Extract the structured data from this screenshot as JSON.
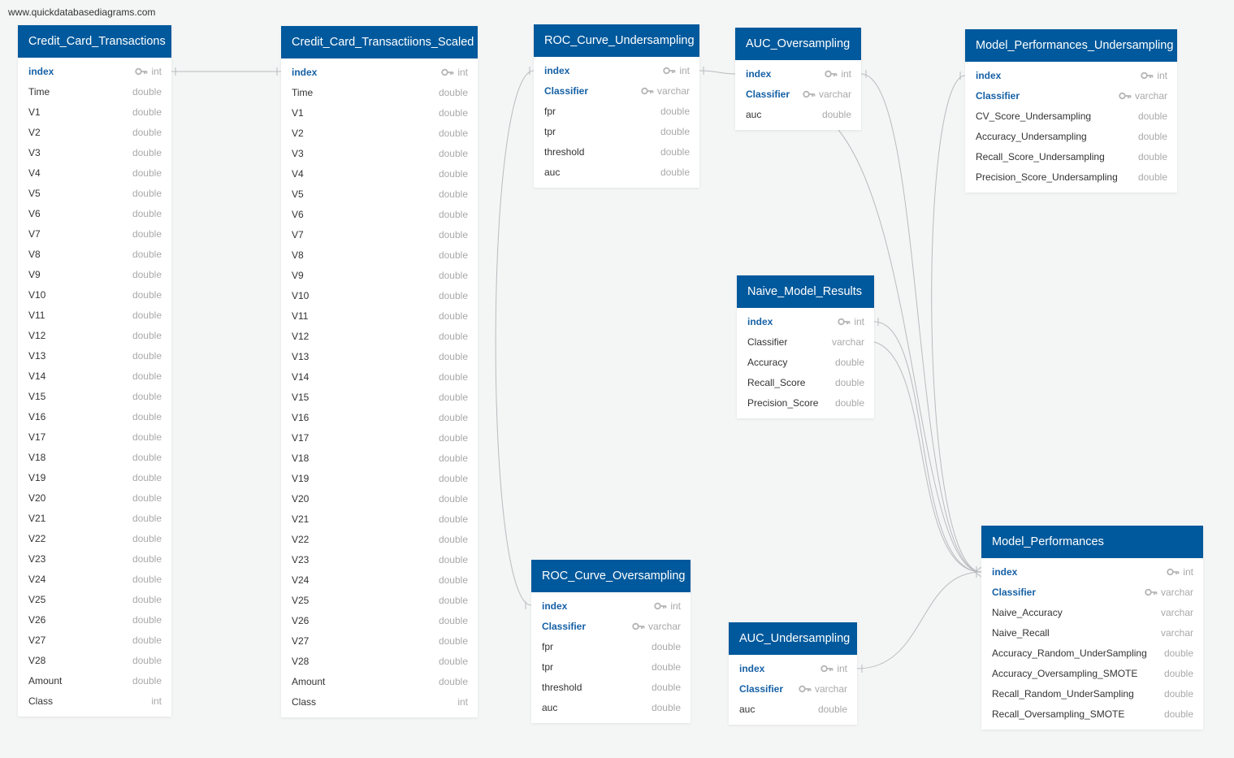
{
  "watermark": "www.quickdatabasediagrams.com",
  "colors": {
    "header": "#00599c",
    "key_text": "#1560a5",
    "type_text": "#a9a9a9",
    "line": "#b8bcbf",
    "background": "#f4f5f5"
  },
  "tables": [
    {
      "id": "credit_card_transactions",
      "name": "Credit_Card_Transactions",
      "fields": [
        {
          "name": "index",
          "type": "int",
          "pk": true
        },
        {
          "name": "Time",
          "type": "double"
        },
        {
          "name": "V1",
          "type": "double"
        },
        {
          "name": "V2",
          "type": "double"
        },
        {
          "name": "V3",
          "type": "double"
        },
        {
          "name": "V4",
          "type": "double"
        },
        {
          "name": "V5",
          "type": "double"
        },
        {
          "name": "V6",
          "type": "double"
        },
        {
          "name": "V7",
          "type": "double"
        },
        {
          "name": "V8",
          "type": "double"
        },
        {
          "name": "V9",
          "type": "double"
        },
        {
          "name": "V10",
          "type": "double"
        },
        {
          "name": "V11",
          "type": "double"
        },
        {
          "name": "V12",
          "type": "double"
        },
        {
          "name": "V13",
          "type": "double"
        },
        {
          "name": "V14",
          "type": "double"
        },
        {
          "name": "V15",
          "type": "double"
        },
        {
          "name": "V16",
          "type": "double"
        },
        {
          "name": "V17",
          "type": "double"
        },
        {
          "name": "V18",
          "type": "double"
        },
        {
          "name": "V19",
          "type": "double"
        },
        {
          "name": "V20",
          "type": "double"
        },
        {
          "name": "V21",
          "type": "double"
        },
        {
          "name": "V22",
          "type": "double"
        },
        {
          "name": "V23",
          "type": "double"
        },
        {
          "name": "V24",
          "type": "double"
        },
        {
          "name": "V25",
          "type": "double"
        },
        {
          "name": "V26",
          "type": "double"
        },
        {
          "name": "V27",
          "type": "double"
        },
        {
          "name": "V28",
          "type": "double"
        },
        {
          "name": "Amount",
          "type": "double"
        },
        {
          "name": "Class",
          "type": "int"
        }
      ]
    },
    {
      "id": "credit_card_transactions_scaled",
      "name": "Credit_Card_Transactiions_Scaled",
      "fields": [
        {
          "name": "index",
          "type": "int",
          "pk": true
        },
        {
          "name": "Time",
          "type": "double"
        },
        {
          "name": "V1",
          "type": "double"
        },
        {
          "name": "V2",
          "type": "double"
        },
        {
          "name": "V3",
          "type": "double"
        },
        {
          "name": "V4",
          "type": "double"
        },
        {
          "name": "V5",
          "type": "double"
        },
        {
          "name": "V6",
          "type": "double"
        },
        {
          "name": "V7",
          "type": "double"
        },
        {
          "name": "V8",
          "type": "double"
        },
        {
          "name": "V9",
          "type": "double"
        },
        {
          "name": "V10",
          "type": "double"
        },
        {
          "name": "V11",
          "type": "double"
        },
        {
          "name": "V12",
          "type": "double"
        },
        {
          "name": "V13",
          "type": "double"
        },
        {
          "name": "V14",
          "type": "double"
        },
        {
          "name": "V15",
          "type": "double"
        },
        {
          "name": "V16",
          "type": "double"
        },
        {
          "name": "V17",
          "type": "double"
        },
        {
          "name": "V18",
          "type": "double"
        },
        {
          "name": "V19",
          "type": "double"
        },
        {
          "name": "V20",
          "type": "double"
        },
        {
          "name": "V21",
          "type": "double"
        },
        {
          "name": "V22",
          "type": "double"
        },
        {
          "name": "V23",
          "type": "double"
        },
        {
          "name": "V24",
          "type": "double"
        },
        {
          "name": "V25",
          "type": "double"
        },
        {
          "name": "V26",
          "type": "double"
        },
        {
          "name": "V27",
          "type": "double"
        },
        {
          "name": "V28",
          "type": "double"
        },
        {
          "name": "Amount",
          "type": "double"
        },
        {
          "name": "Class",
          "type": "int"
        }
      ]
    },
    {
      "id": "roc_curve_undersampling",
      "name": "ROC_Curve_Undersampling",
      "fields": [
        {
          "name": "index",
          "type": "int",
          "pk": true
        },
        {
          "name": "Classifier",
          "type": "varchar",
          "pk": true
        },
        {
          "name": "fpr",
          "type": "double"
        },
        {
          "name": "tpr",
          "type": "double"
        },
        {
          "name": "threshold",
          "type": "double"
        },
        {
          "name": "auc",
          "type": "double"
        }
      ]
    },
    {
      "id": "auc_oversampling",
      "name": "AUC_Oversampling",
      "fields": [
        {
          "name": "index",
          "type": "int",
          "pk": true
        },
        {
          "name": "Classifier",
          "type": "varchar",
          "pk": true
        },
        {
          "name": "auc",
          "type": "double"
        }
      ]
    },
    {
      "id": "model_performances_undersampling",
      "name": "Model_Performances_Undersampling",
      "fields": [
        {
          "name": "index",
          "type": "int",
          "pk": true
        },
        {
          "name": "Classifier",
          "type": "varchar",
          "pk": true
        },
        {
          "name": "CV_Score_Undersampling",
          "type": "double"
        },
        {
          "name": "Accuracy_Undersampling",
          "type": "double"
        },
        {
          "name": "Recall_Score_Undersampling",
          "type": "double"
        },
        {
          "name": "Precision_Score_Undersampling",
          "type": "double"
        }
      ]
    },
    {
      "id": "naive_model_results",
      "name": "Naive_Model_Results",
      "fields": [
        {
          "name": "index",
          "type": "int",
          "pk": true
        },
        {
          "name": "Classifier",
          "type": "varchar"
        },
        {
          "name": "Accuracy",
          "type": "double"
        },
        {
          "name": "Recall_Score",
          "type": "double"
        },
        {
          "name": "Precision_Score",
          "type": "double"
        }
      ]
    },
    {
      "id": "roc_curve_oversampling",
      "name": "ROC_Curve_Oversampling",
      "fields": [
        {
          "name": "index",
          "type": "int",
          "pk": true
        },
        {
          "name": "Classifier",
          "type": "varchar",
          "pk": true
        },
        {
          "name": "fpr",
          "type": "double"
        },
        {
          "name": "tpr",
          "type": "double"
        },
        {
          "name": "threshold",
          "type": "double"
        },
        {
          "name": "auc",
          "type": "double"
        }
      ]
    },
    {
      "id": "auc_undersampling",
      "name": "AUC_Undersampling",
      "fields": [
        {
          "name": "index",
          "type": "int",
          "pk": true
        },
        {
          "name": "Classifier",
          "type": "varchar",
          "pk": true
        },
        {
          "name": "auc",
          "type": "double"
        }
      ]
    },
    {
      "id": "model_performances",
      "name": "Model_Performances",
      "fields": [
        {
          "name": "index",
          "type": "int",
          "pk": true
        },
        {
          "name": "Classifier",
          "type": "varchar",
          "pk": true
        },
        {
          "name": "Naive_Accuracy",
          "type": "varchar"
        },
        {
          "name": "Naive_Recall",
          "type": "varchar"
        },
        {
          "name": "Accuracy_Random_UnderSampling",
          "type": "double"
        },
        {
          "name": "Accuracy_Oversampling_SMOTE",
          "type": "double"
        },
        {
          "name": "Recall_Random_UnderSampling",
          "type": "double"
        },
        {
          "name": "Recall_Oversampling_SMOTE",
          "type": "double"
        }
      ]
    }
  ]
}
